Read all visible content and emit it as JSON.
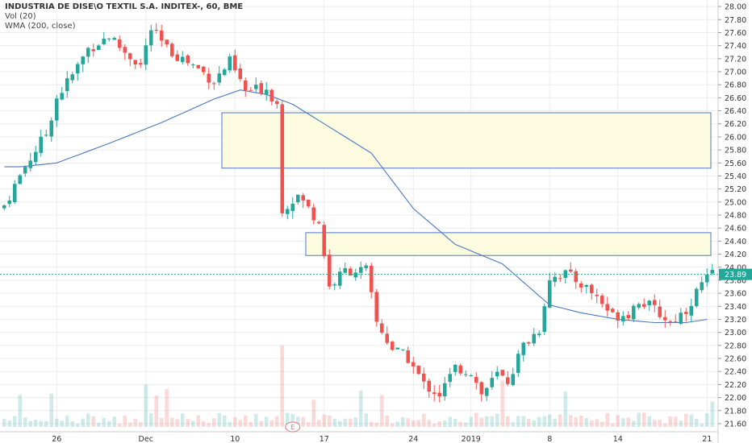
{
  "legend": {
    "symbol": "INDUSTRIA DE DISE\\O TEXTIL S.A. INDITEX-, 60, BME",
    "volume": "Vol (20)",
    "wma": "WMA (200, close)"
  },
  "price_label": "23.89",
  "earnings_marker": "E",
  "colors": {
    "up": "#26a69a",
    "down": "#ef5350",
    "wma": "#4a78c2",
    "zone_fill": "#fdfbe0",
    "zone_stroke": "#4a78c2",
    "price_line": "#26a69a",
    "grid": "#ececec",
    "axis_text": "#333333"
  },
  "chart_data": {
    "type": "candlestick",
    "title": "INDUSTRIA DE DISE\\O TEXTIL S.A. INDITEX-, 60, BME",
    "ylim": [
      21.55,
      28.1
    ],
    "y_ticks": [
      21.6,
      21.8,
      22.0,
      22.2,
      22.4,
      22.6,
      22.8,
      23.0,
      23.2,
      23.4,
      23.6,
      23.8,
      24.0,
      24.2,
      24.4,
      24.6,
      24.8,
      25.0,
      25.2,
      25.4,
      25.6,
      25.8,
      26.0,
      26.2,
      26.4,
      26.6,
      26.8,
      27.0,
      27.2,
      27.4,
      27.6,
      27.8,
      28.0
    ],
    "x_ticks": [
      {
        "label": "26",
        "bar": 10
      },
      {
        "label": "Dec",
        "bar": 27
      },
      {
        "label": "10",
        "bar": 44
      },
      {
        "label": "17",
        "bar": 61
      },
      {
        "label": "24",
        "bar": 78
      },
      {
        "label": "2019",
        "bar": 89
      },
      {
        "label": "8",
        "bar": 104
      },
      {
        "label": "14",
        "bar": 117
      },
      {
        "label": "21",
        "bar": 134
      }
    ],
    "bar_count": 136,
    "close_anchors": [
      [
        0,
        24.95
      ],
      [
        4,
        25.55
      ],
      [
        8,
        26.05
      ],
      [
        10,
        26.6
      ],
      [
        13,
        26.95
      ],
      [
        16,
        27.35
      ],
      [
        20,
        27.55
      ],
      [
        23,
        27.3
      ],
      [
        26,
        27.1
      ],
      [
        28,
        27.65
      ],
      [
        31,
        27.35
      ],
      [
        34,
        27.2
      ],
      [
        37,
        27.05
      ],
      [
        40,
        26.85
      ],
      [
        43,
        27.15
      ],
      [
        46,
        26.7
      ],
      [
        50,
        26.75
      ],
      [
        52,
        26.5
      ],
      [
        53,
        24.9
      ],
      [
        56,
        25.1
      ],
      [
        60,
        24.7
      ],
      [
        62,
        23.7
      ],
      [
        65,
        23.95
      ],
      [
        69,
        23.95
      ],
      [
        71,
        23.15
      ],
      [
        74,
        22.75
      ],
      [
        77,
        22.6
      ],
      [
        80,
        22.2
      ],
      [
        83,
        22.05
      ],
      [
        86,
        22.45
      ],
      [
        89,
        22.4
      ],
      [
        91,
        22.05
      ],
      [
        94,
        22.35
      ],
      [
        96,
        22.25
      ],
      [
        99,
        22.8
      ],
      [
        102,
        23.05
      ],
      [
        104,
        23.85
      ],
      [
        107,
        23.9
      ],
      [
        110,
        23.75
      ],
      [
        113,
        23.55
      ],
      [
        116,
        23.25
      ],
      [
        119,
        23.3
      ],
      [
        121,
        23.5
      ],
      [
        124,
        23.35
      ],
      [
        127,
        23.15
      ],
      [
        130,
        23.35
      ],
      [
        133,
        23.75
      ],
      [
        135,
        23.89
      ]
    ],
    "wma_anchors": [
      [
        0,
        25.54
      ],
      [
        3,
        25.54
      ],
      [
        10,
        25.6
      ],
      [
        20,
        25.9
      ],
      [
        30,
        26.22
      ],
      [
        40,
        26.58
      ],
      [
        45,
        26.72
      ],
      [
        50,
        26.65
      ],
      [
        55,
        26.5
      ],
      [
        62,
        26.15
      ],
      [
        70,
        25.75
      ],
      [
        78,
        24.9
      ],
      [
        86,
        24.35
      ],
      [
        95,
        24.05
      ],
      [
        100,
        23.7
      ],
      [
        104,
        23.42
      ],
      [
        110,
        23.3
      ],
      [
        117,
        23.2
      ],
      [
        124,
        23.15
      ],
      [
        130,
        23.15
      ],
      [
        134,
        23.2
      ]
    ],
    "zones": [
      {
        "top": 26.37,
        "bottom": 25.52,
        "start_bar": 42
      },
      {
        "top": 24.53,
        "bottom": 24.18,
        "start_bar": 58
      }
    ],
    "last_price": 23.89,
    "earnings_bar": 55
  }
}
